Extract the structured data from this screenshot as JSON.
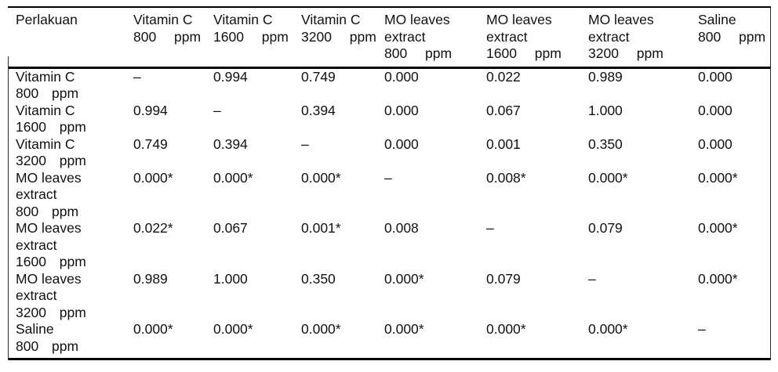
{
  "colors": {
    "background": "#ffffff",
    "text": "#111111",
    "thick_rule": "#000000",
    "thin_border": "#2e2e2e"
  },
  "chart_data": {
    "type": "table",
    "columns": [
      "Perlakuan",
      "Vitamin C 800 ppm",
      "Vitamin C 1600 ppm",
      "Vitamin C 3200 ppm",
      "MO leaves extract 800 ppm",
      "MO leaves extract 1600 ppm",
      "MO leaves extract 3200 ppm",
      "Saline 800 ppm"
    ],
    "rows": [
      {
        "treatment": "Vitamin C 800 ppm",
        "values": [
          "–",
          "0.994",
          "0.749",
          "0.000",
          "0.022",
          "0.989",
          "0.000"
        ]
      },
      {
        "treatment": "Vitamin C 1600 ppm",
        "values": [
          "0.994",
          "–",
          "0.394",
          "0.000",
          "0.067",
          "1.000",
          "0.000"
        ]
      },
      {
        "treatment": "Vitamin C 3200 ppm",
        "values": [
          "0.749",
          "0.394",
          "–",
          "0.000",
          "0.001",
          "0.350",
          "0.000"
        ]
      },
      {
        "treatment": "MO leaves extract 800 ppm",
        "values": [
          "0.000*",
          "0.000*",
          "0.000*",
          "–",
          "0.008*",
          "0.000*",
          "0.000*"
        ]
      },
      {
        "treatment": "MO leaves extract 1600 ppm",
        "values": [
          "0.022*",
          "0.067",
          "0.001*",
          "0.008",
          "–",
          "0.079",
          "0.000*"
        ]
      },
      {
        "treatment": "MO leaves extract 3200 ppm",
        "values": [
          "0.989",
          "1.000",
          "0.350",
          "0.000*",
          "0.079",
          "–",
          "0.000*"
        ]
      },
      {
        "treatment": "Saline 800 ppm",
        "values": [
          "0.000*",
          "0.000*",
          "0.000*",
          "0.000*",
          "0.000*",
          "0.000*",
          "–"
        ]
      }
    ]
  },
  "table": {
    "header_lines": [
      [
        "Perlakuan"
      ],
      [
        "Vitamin C",
        "800 ppm"
      ],
      [
        "Vitamin C",
        "1600 ppm"
      ],
      [
        "Vitamin C",
        "3200 ppm"
      ],
      [
        "MO leaves",
        "extract",
        "800 ppm"
      ],
      [
        "MO leaves",
        "extract",
        "1600 ppm"
      ],
      [
        "MO leaves",
        "extract",
        "3200 ppm"
      ],
      [
        "Saline",
        "800 ppm"
      ]
    ],
    "row_label_lines": [
      [
        "Vitamin C",
        "800 ppm"
      ],
      [
        "Vitamin C",
        "1600 ppm"
      ],
      [
        "Vitamin C",
        "3200 ppm"
      ],
      [
        "MO leaves",
        "extract",
        "800 ppm"
      ],
      [
        "MO leaves",
        "extract",
        "1600 ppm"
      ],
      [
        "MO leaves",
        "extract",
        "3200 ppm"
      ],
      [
        "Saline",
        "800 ppm"
      ]
    ]
  }
}
